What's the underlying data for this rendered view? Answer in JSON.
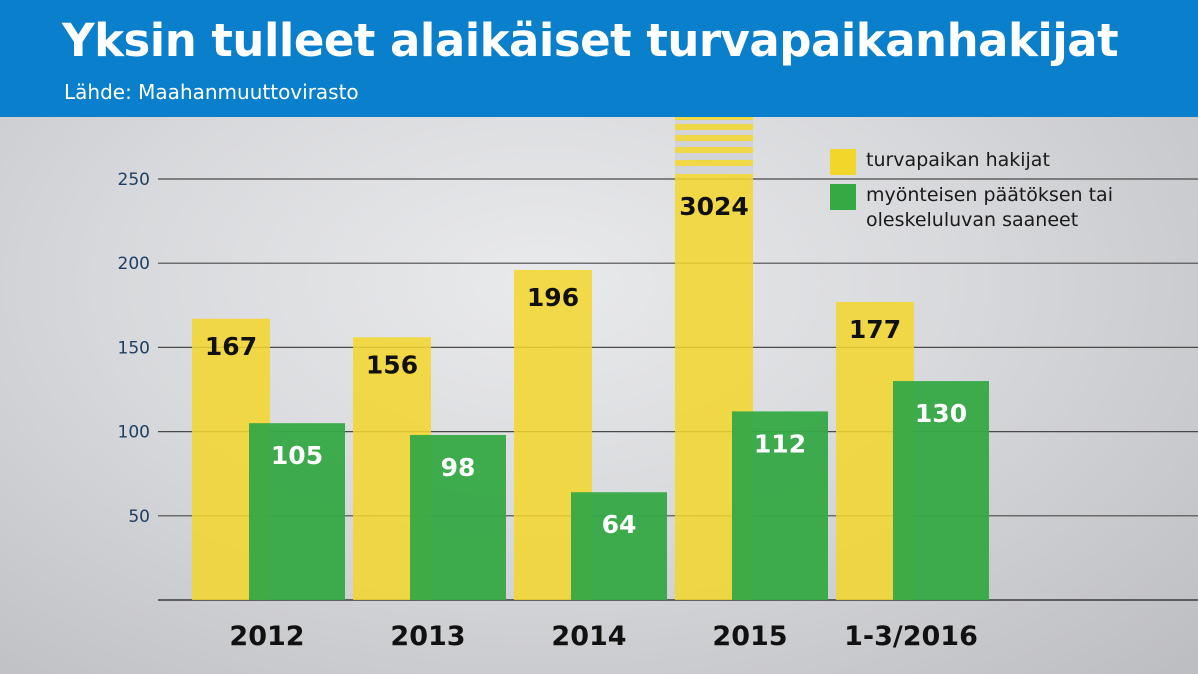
{
  "header": {
    "title": "Yksin tulleet alaikäiset turvapaikanhakijat",
    "subtitle": "Lähde: Maahanmuuttovirasto"
  },
  "colors": {
    "header_bg": "#0a7fcb",
    "yellow": "#f3d62a",
    "green": "#35a944"
  },
  "chart_data": {
    "type": "bar",
    "title": "Yksin tulleet alaikäiset turvapaikanhakijat",
    "xlabel": "",
    "ylabel": "",
    "categories": [
      "2012",
      "2013",
      "2014",
      "2015",
      "1-3/2016"
    ],
    "series": [
      {
        "name": "turvapaikan hakijat",
        "values": [
          167,
          156,
          196,
          3024,
          177
        ]
      },
      {
        "name": "myönteisen päätöksen tai oleskeluluvan saaneet",
        "values": [
          105,
          98,
          64,
          112,
          130
        ]
      }
    ],
    "ylim": [
      0,
      250
    ],
    "yticks": [
      50,
      100,
      150,
      200,
      250
    ],
    "axis_break": {
      "category": "2015",
      "series": "turvapaikan hakijat"
    },
    "grid": true,
    "legend_position": "top-right"
  }
}
